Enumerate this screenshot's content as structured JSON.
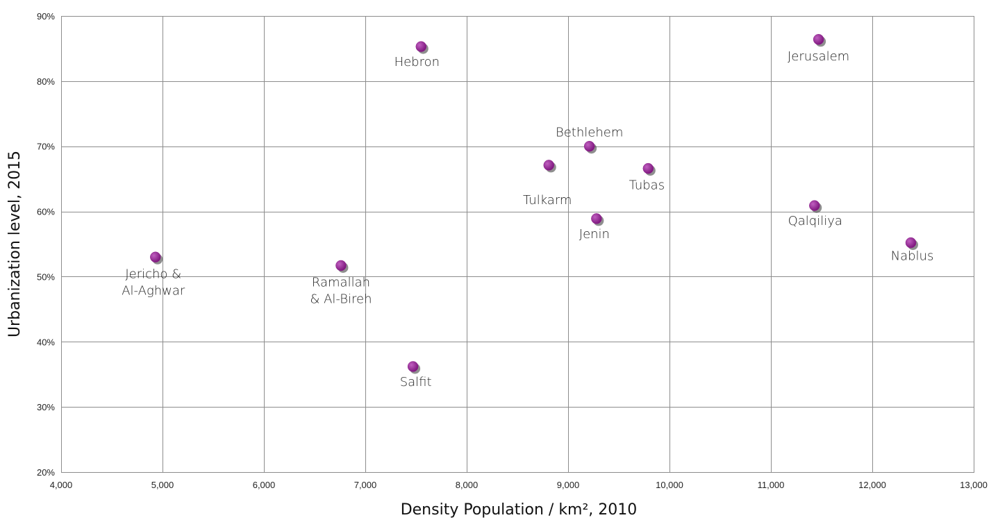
{
  "chart_data": {
    "type": "scatter",
    "xlabel": "Density Population / km², 2010",
    "ylabel": "Urbanization level, 2015",
    "xlim": [
      4000,
      13000
    ],
    "ylim": [
      20,
      90
    ],
    "x_ticks": [
      4000,
      5000,
      6000,
      7000,
      8000,
      9000,
      10000,
      11000,
      12000,
      13000
    ],
    "x_tick_labels": [
      "4,000",
      "5,000",
      "6,000",
      "7,000",
      "8,000",
      "9,000",
      "10,000",
      "11,000",
      "12,000",
      "13,000"
    ],
    "y_ticks": [
      20,
      30,
      40,
      50,
      60,
      70,
      80,
      90
    ],
    "y_tick_labels": [
      "20%",
      "30%",
      "40%",
      "50%",
      "60%",
      "70%",
      "80%",
      "90%"
    ],
    "grid": true,
    "marker_color": "#8e1f8c",
    "points": [
      {
        "label": [
          "Jericho &",
          "Al-Aghwar"
        ],
        "x": 4930,
        "y": 53.0
      },
      {
        "label": [
          "Ramallah",
          "& Al-Bireh"
        ],
        "x": 6760,
        "y": 51.7
      },
      {
        "label": [
          "Salfit"
        ],
        "x": 7470,
        "y": 36.2
      },
      {
        "label": [
          "Hebron"
        ],
        "x": 7550,
        "y": 85.3
      },
      {
        "label": [
          "Tulkarm"
        ],
        "x": 8810,
        "y": 67.1
      },
      {
        "label": [
          "Bethlehem"
        ],
        "x": 9210,
        "y": 70.0
      },
      {
        "label": [
          "Jenin"
        ],
        "x": 9280,
        "y": 58.9
      },
      {
        "label": [
          "Tubas"
        ],
        "x": 9790,
        "y": 66.6
      },
      {
        "label": [
          "Qalqiliya"
        ],
        "x": 11430,
        "y": 60.9
      },
      {
        "label": [
          "Jerusalem"
        ],
        "x": 11470,
        "y": 86.4
      },
      {
        "label": [
          "Nablus"
        ],
        "x": 12380,
        "y": 55.2
      }
    ]
  }
}
